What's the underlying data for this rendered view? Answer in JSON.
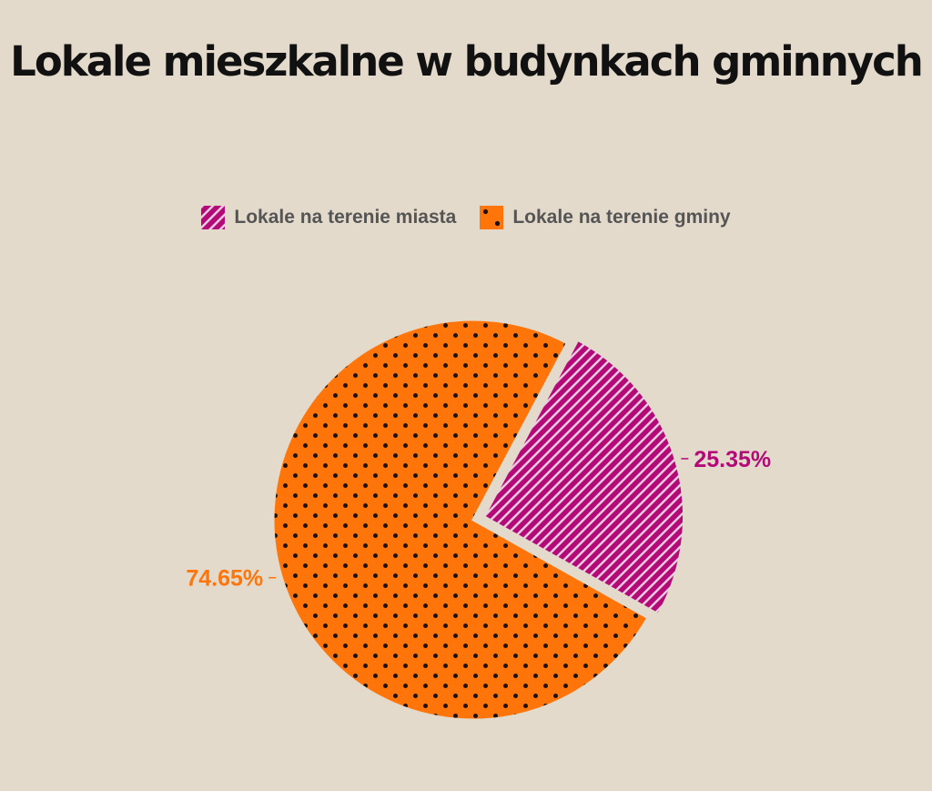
{
  "chart_data": {
    "type": "pie",
    "title": "Lokale mieszkalne w budynkach gminnych",
    "legend_position": "top",
    "slices": [
      {
        "name": "Lokale na terenie miasta",
        "value": 25.35,
        "label": "25.35%",
        "color": "#b30a78",
        "pattern": "stripes"
      },
      {
        "name": "Lokale na terenie gminy",
        "value": 74.65,
        "label": "74.65%",
        "color": "#ff750a",
        "pattern": "dots"
      }
    ]
  },
  "colors": {
    "background": "#e3dacc",
    "title": "#111111",
    "legend_text": "#555555"
  }
}
